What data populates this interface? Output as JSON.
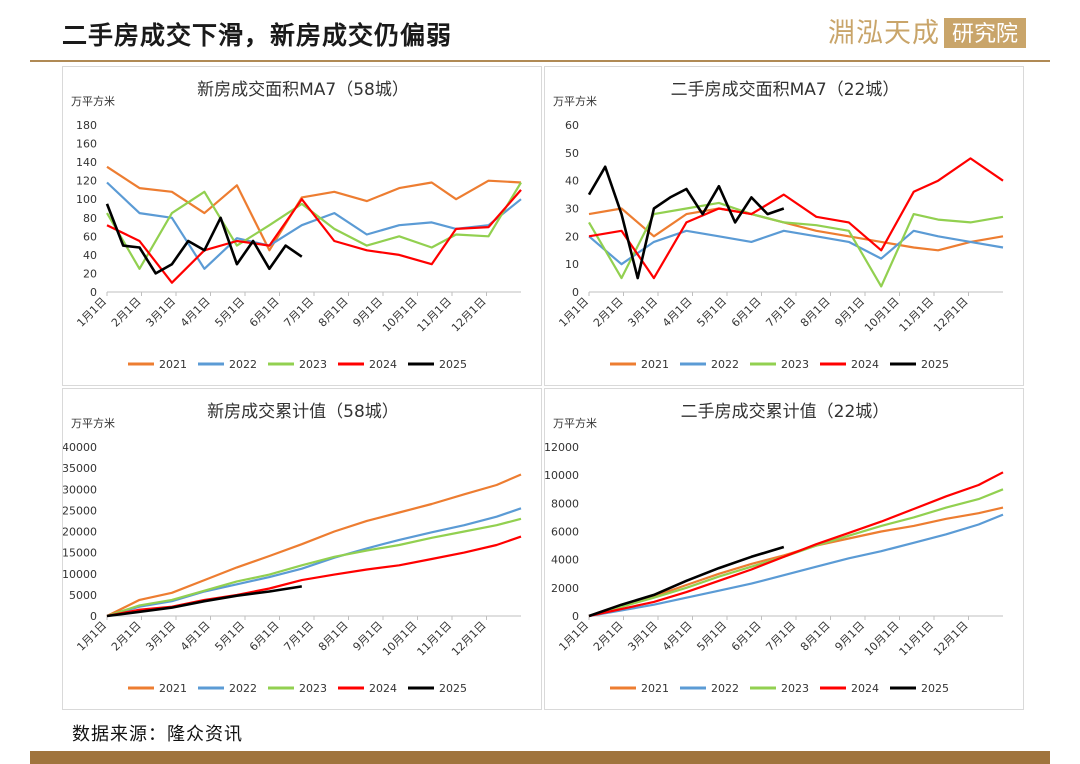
{
  "header": {
    "title": "二手房成交下滑，新房成交仍偏弱"
  },
  "logo": {
    "text_main": "淵泓天成",
    "text_box": "研究院"
  },
  "footer": {
    "source": "数据来源：隆众资讯"
  },
  "colors": {
    "2021": "#ed7d31",
    "2022": "#5b9bd5",
    "2023": "#92d050",
    "2024": "#ff0000",
    "2025": "#000000",
    "rule": "#b08a55",
    "bar": "#a0743d"
  },
  "chart_data": [
    {
      "type": "line",
      "title": "新房成交面积MA7（58城）",
      "unit": "万平方米",
      "ylim": [
        0,
        180
      ],
      "yticks": [
        0,
        20,
        40,
        60,
        80,
        100,
        120,
        140,
        160,
        180
      ],
      "xticks": [
        "1月1日",
        "2月1日",
        "3月1日",
        "4月1日",
        "5月1日",
        "6月1日",
        "7月1日",
        "8月1日",
        "9月1日",
        "10月1日",
        "11月1日",
        "12月1日"
      ],
      "legend_position": "bottom",
      "series": [
        {
          "name": "2021",
          "x": [
            1,
            5,
            9,
            13,
            17,
            21,
            25,
            29,
            33,
            37,
            41,
            44,
            48,
            52
          ],
          "values": [
            135,
            112,
            108,
            85,
            115,
            45,
            102,
            108,
            98,
            112,
            118,
            100,
            120,
            118
          ]
        },
        {
          "name": "2022",
          "x": [
            1,
            5,
            9,
            13,
            17,
            21,
            25,
            29,
            33,
            37,
            41,
            44,
            48,
            52
          ],
          "values": [
            118,
            85,
            80,
            25,
            58,
            50,
            72,
            85,
            62,
            72,
            75,
            68,
            72,
            100
          ]
        },
        {
          "name": "2023",
          "x": [
            1,
            5,
            9,
            13,
            17,
            21,
            25,
            29,
            33,
            37,
            41,
            44,
            48,
            52
          ],
          "values": [
            85,
            25,
            85,
            108,
            50,
            72,
            95,
            68,
            50,
            60,
            48,
            62,
            60,
            118
          ]
        },
        {
          "name": "2024",
          "x": [
            1,
            5,
            9,
            13,
            17,
            21,
            25,
            29,
            33,
            37,
            41,
            44,
            48,
            52
          ],
          "values": [
            72,
            55,
            10,
            45,
            55,
            50,
            100,
            55,
            45,
            40,
            30,
            68,
            70,
            110
          ]
        },
        {
          "name": "2025",
          "x": [
            1,
            3,
            5,
            7,
            9,
            11,
            13,
            15,
            17,
            19,
            21,
            23,
            25
          ],
          "values": [
            95,
            50,
            48,
            20,
            30,
            55,
            45,
            80,
            30,
            55,
            25,
            50,
            38
          ]
        }
      ]
    },
    {
      "type": "line",
      "title": "二手房成交面积MA7（22城）",
      "unit": "万平方米",
      "ylim": [
        0,
        60
      ],
      "yticks": [
        0,
        10,
        20,
        30,
        40,
        50,
        60
      ],
      "xticks": [
        "1月1日",
        "2月1日",
        "3月1日",
        "4月1日",
        "5月1日",
        "6月1日",
        "7月1日",
        "8月1日",
        "9月1日",
        "10月1日",
        "11月1日",
        "12月1日"
      ],
      "legend_position": "bottom",
      "series": [
        {
          "name": "2021",
          "x": [
            1,
            5,
            9,
            13,
            17,
            21,
            25,
            29,
            33,
            37,
            41,
            44,
            48,
            52
          ],
          "values": [
            28,
            30,
            20,
            28,
            30,
            28,
            25,
            22,
            20,
            18,
            16,
            15,
            18,
            20
          ]
        },
        {
          "name": "2022",
          "x": [
            1,
            5,
            9,
            13,
            17,
            21,
            25,
            29,
            33,
            37,
            41,
            44,
            48,
            52
          ],
          "values": [
            20,
            10,
            18,
            22,
            20,
            18,
            22,
            20,
            18,
            12,
            22,
            20,
            18,
            16
          ]
        },
        {
          "name": "2023",
          "x": [
            1,
            5,
            9,
            13,
            17,
            21,
            25,
            29,
            33,
            37,
            41,
            44,
            48,
            52
          ],
          "values": [
            25,
            5,
            28,
            30,
            32,
            28,
            25,
            24,
            22,
            2,
            28,
            26,
            25,
            27
          ]
        },
        {
          "name": "2024",
          "x": [
            1,
            5,
            9,
            13,
            17,
            21,
            25,
            29,
            33,
            37,
            41,
            44,
            48,
            52
          ],
          "values": [
            20,
            22,
            5,
            25,
            30,
            28,
            35,
            27,
            25,
            15,
            36,
            40,
            48,
            40
          ]
        },
        {
          "name": "2025",
          "x": [
            1,
            3,
            5,
            7,
            9,
            11,
            13,
            15,
            17,
            19,
            21,
            23,
            25
          ],
          "values": [
            35,
            45,
            28,
            5,
            30,
            34,
            37,
            28,
            38,
            25,
            34,
            28,
            30
          ]
        }
      ]
    },
    {
      "type": "line",
      "title": "新房成交累计值（58城）",
      "unit": "万平方米",
      "ylim": [
        0,
        40000
      ],
      "yticks": [
        0,
        5000,
        10000,
        15000,
        20000,
        25000,
        30000,
        35000,
        40000
      ],
      "xticks": [
        "1月1日",
        "2月1日",
        "3月1日",
        "4月1日",
        "5月1日",
        "6月1日",
        "7月1日",
        "8月1日",
        "9月1日",
        "10月1日",
        "11月1日",
        "12月1日"
      ],
      "legend_position": "bottom",
      "series": [
        {
          "name": "2021",
          "x": [
            1,
            5,
            9,
            13,
            17,
            21,
            25,
            29,
            33,
            37,
            41,
            45,
            49,
            52
          ],
          "values": [
            0,
            3800,
            5500,
            8500,
            11500,
            14200,
            17000,
            20000,
            22500,
            24500,
            26500,
            28800,
            31000,
            33500
          ]
        },
        {
          "name": "2022",
          "x": [
            1,
            5,
            9,
            13,
            17,
            21,
            25,
            29,
            33,
            37,
            41,
            45,
            49,
            52
          ],
          "values": [
            0,
            2200,
            3500,
            5800,
            7500,
            9200,
            11200,
            13800,
            16000,
            18000,
            19800,
            21500,
            23500,
            25500
          ]
        },
        {
          "name": "2023",
          "x": [
            1,
            5,
            9,
            13,
            17,
            21,
            25,
            29,
            33,
            37,
            41,
            45,
            49,
            52
          ],
          "values": [
            0,
            2500,
            3800,
            6000,
            8200,
            9800,
            12000,
            14000,
            15500,
            16800,
            18500,
            20000,
            21500,
            23000
          ]
        },
        {
          "name": "2024",
          "x": [
            1,
            5,
            9,
            13,
            17,
            21,
            25,
            29,
            33,
            37,
            41,
            45,
            49,
            52
          ],
          "values": [
            0,
            1500,
            2200,
            3800,
            5000,
            6500,
            8500,
            9800,
            11000,
            12000,
            13500,
            15000,
            16800,
            18800
          ]
        },
        {
          "name": "2025",
          "x": [
            1,
            5,
            9,
            13,
            17,
            21,
            25
          ],
          "values": [
            0,
            1000,
            2000,
            3500,
            4800,
            5800,
            7000
          ]
        }
      ]
    },
    {
      "type": "line",
      "title": "二手房成交累计值（22城）",
      "unit": "万平方米",
      "ylim": [
        0,
        12000
      ],
      "yticks": [
        0,
        2000,
        4000,
        6000,
        8000,
        10000,
        12000
      ],
      "xticks": [
        "1月1日",
        "2月1日",
        "3月1日",
        "4月1日",
        "5月1日",
        "6月1日",
        "7月1日",
        "8月1日",
        "9月1日",
        "10月1日",
        "11月1日",
        "12月1日"
      ],
      "legend_position": "bottom",
      "series": [
        {
          "name": "2021",
          "x": [
            1,
            5,
            9,
            13,
            17,
            21,
            25,
            29,
            33,
            37,
            41,
            45,
            49,
            52
          ],
          "values": [
            0,
            800,
            1400,
            2200,
            3000,
            3700,
            4300,
            5000,
            5500,
            6000,
            6400,
            6900,
            7300,
            7700
          ]
        },
        {
          "name": "2022",
          "x": [
            1,
            5,
            9,
            13,
            17,
            21,
            25,
            29,
            33,
            37,
            41,
            45,
            49,
            52
          ],
          "values": [
            0,
            400,
            800,
            1300,
            1800,
            2300,
            2900,
            3500,
            4100,
            4600,
            5200,
            5800,
            6500,
            7200
          ]
        },
        {
          "name": "2023",
          "x": [
            1,
            5,
            9,
            13,
            17,
            21,
            25,
            29,
            33,
            37,
            41,
            45,
            49,
            52
          ],
          "values": [
            0,
            650,
            1300,
            2000,
            2800,
            3500,
            4200,
            5000,
            5700,
            6400,
            7000,
            7700,
            8300,
            9000
          ]
        },
        {
          "name": "2024",
          "x": [
            1,
            5,
            9,
            13,
            17,
            21,
            25,
            29,
            33,
            37,
            41,
            45,
            49,
            52
          ],
          "values": [
            0,
            500,
            1000,
            1700,
            2500,
            3300,
            4200,
            5100,
            5900,
            6700,
            7600,
            8500,
            9300,
            10200
          ]
        },
        {
          "name": "2025",
          "x": [
            1,
            5,
            9,
            13,
            17,
            21,
            25
          ],
          "values": [
            0,
            800,
            1500,
            2500,
            3400,
            4200,
            4900
          ]
        }
      ]
    }
  ]
}
